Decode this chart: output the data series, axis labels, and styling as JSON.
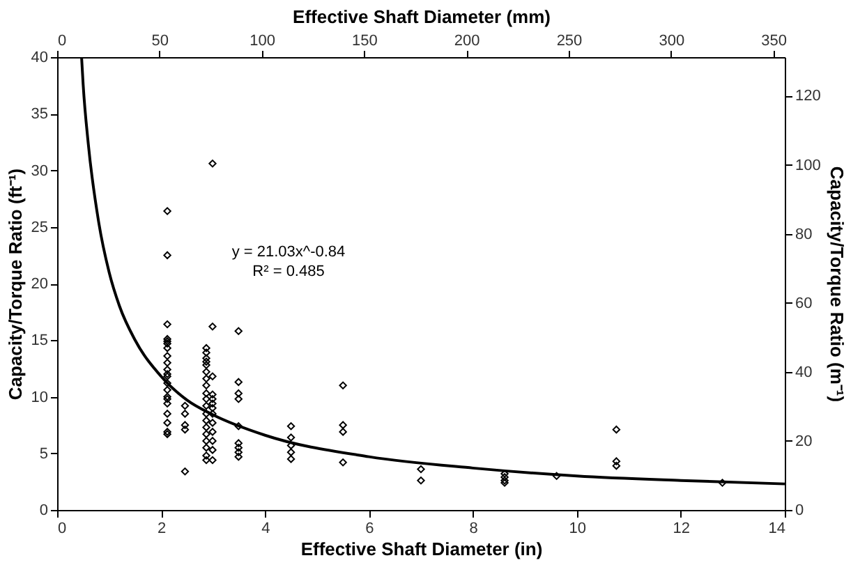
{
  "chart_data": {
    "type": "scatter",
    "xlabel": "Effective Shaft Diameter (in)",
    "ylabel": "Capacity/Torque Ratio (ft⁻¹)",
    "y2label": "Capacity/Torque Ratio (m⁻¹)",
    "x2label": "Effective Shaft Diameter (mm)",
    "xlim": [
      0,
      14
    ],
    "xticks": [
      0,
      2,
      4,
      6,
      8,
      10,
      12,
      14
    ],
    "ylim": [
      0,
      40
    ],
    "yticks": [
      0,
      5,
      10,
      15,
      20,
      25,
      30,
      35,
      40
    ],
    "x2lim": [
      0,
      355.6
    ],
    "x2ticks": [
      0,
      50,
      100,
      150,
      200,
      250,
      300,
      350
    ],
    "y2lim": [
      0,
      131.2
    ],
    "y2ticks": [
      0,
      20,
      40,
      60,
      80,
      100,
      120
    ],
    "grid": false,
    "marker": "diamond",
    "annotations": [
      "y = 21.03x^-0.84",
      "R² = 0.485"
    ],
    "series": [
      {
        "color": "#000000",
        "x": [
          2.12,
          2.12,
          2.12,
          2.12,
          2.12,
          2.12,
          2.12,
          2.12,
          2.12,
          2.12,
          2.12,
          2.12,
          2.12,
          2.12,
          2.12,
          2.12,
          2.12,
          2.12,
          2.12,
          2.12,
          2.12,
          2.46,
          2.46,
          2.46,
          2.46,
          2.46,
          2.87,
          2.87,
          2.87,
          2.87,
          2.87,
          2.87,
          2.87,
          2.87,
          2.87,
          2.87,
          2.87,
          2.87,
          2.87,
          2.87,
          2.87,
          2.87,
          2.87,
          2.87,
          2.87,
          2.99,
          2.99,
          2.99,
          2.99,
          2.99,
          2.99,
          2.99,
          2.99,
          2.99,
          2.99,
          2.99,
          2.99,
          2.99,
          3.49,
          3.49,
          3.49,
          3.49,
          3.49,
          3.49,
          3.49,
          3.49,
          3.49,
          4.5,
          4.5,
          4.5,
          4.5,
          4.5,
          5.5,
          5.5,
          5.5,
          5.5,
          7.0,
          7.0,
          8.61,
          8.61,
          8.61,
          8.61,
          9.61,
          10.76,
          10.76,
          10.76,
          12.8
        ],
        "values": [
          26.4,
          22.5,
          16.4,
          15.1,
          14.7,
          14.3,
          13.6,
          13.0,
          12.4,
          11.8,
          11.2,
          10.6,
          10.0,
          9.4,
          8.5,
          7.7,
          6.9,
          6.7,
          14.9,
          12.0,
          9.8,
          9.2,
          8.5,
          7.5,
          7.1,
          3.4,
          14.3,
          13.9,
          13.4,
          12.8,
          12.2,
          11.6,
          11.0,
          10.3,
          9.8,
          9.2,
          8.5,
          7.9,
          7.3,
          6.7,
          6.1,
          5.5,
          4.8,
          4.4,
          13.1,
          30.6,
          16.2,
          11.8,
          10.2,
          9.8,
          9.4,
          9.0,
          8.5,
          7.7,
          6.9,
          6.1,
          5.3,
          4.4,
          15.8,
          11.3,
          10.3,
          9.8,
          7.4,
          5.9,
          5.5,
          5.1,
          4.7,
          7.4,
          6.4,
          5.7,
          5.1,
          4.5,
          11.0,
          7.5,
          6.9,
          4.2,
          3.6,
          2.6,
          3.2,
          2.9,
          2.6,
          2.4,
          3.0,
          7.1,
          4.3,
          3.9,
          2.4
        ]
      },
      {
        "type": "line",
        "color": "#000000",
        "line_style": "solid",
        "marker": "none",
        "x": [
          0.47,
          0.5,
          0.6,
          0.8,
          1,
          1.2,
          1.5,
          2,
          2.5,
          3,
          4,
          6,
          8,
          10,
          12,
          14
        ],
        "values": [
          40,
          37.6,
          32.3,
          25.4,
          21.0,
          18.0,
          15.0,
          11.8,
          9.7,
          8.4,
          6.6,
          4.7,
          3.7,
          3.0,
          2.6,
          2.3
        ]
      }
    ]
  }
}
